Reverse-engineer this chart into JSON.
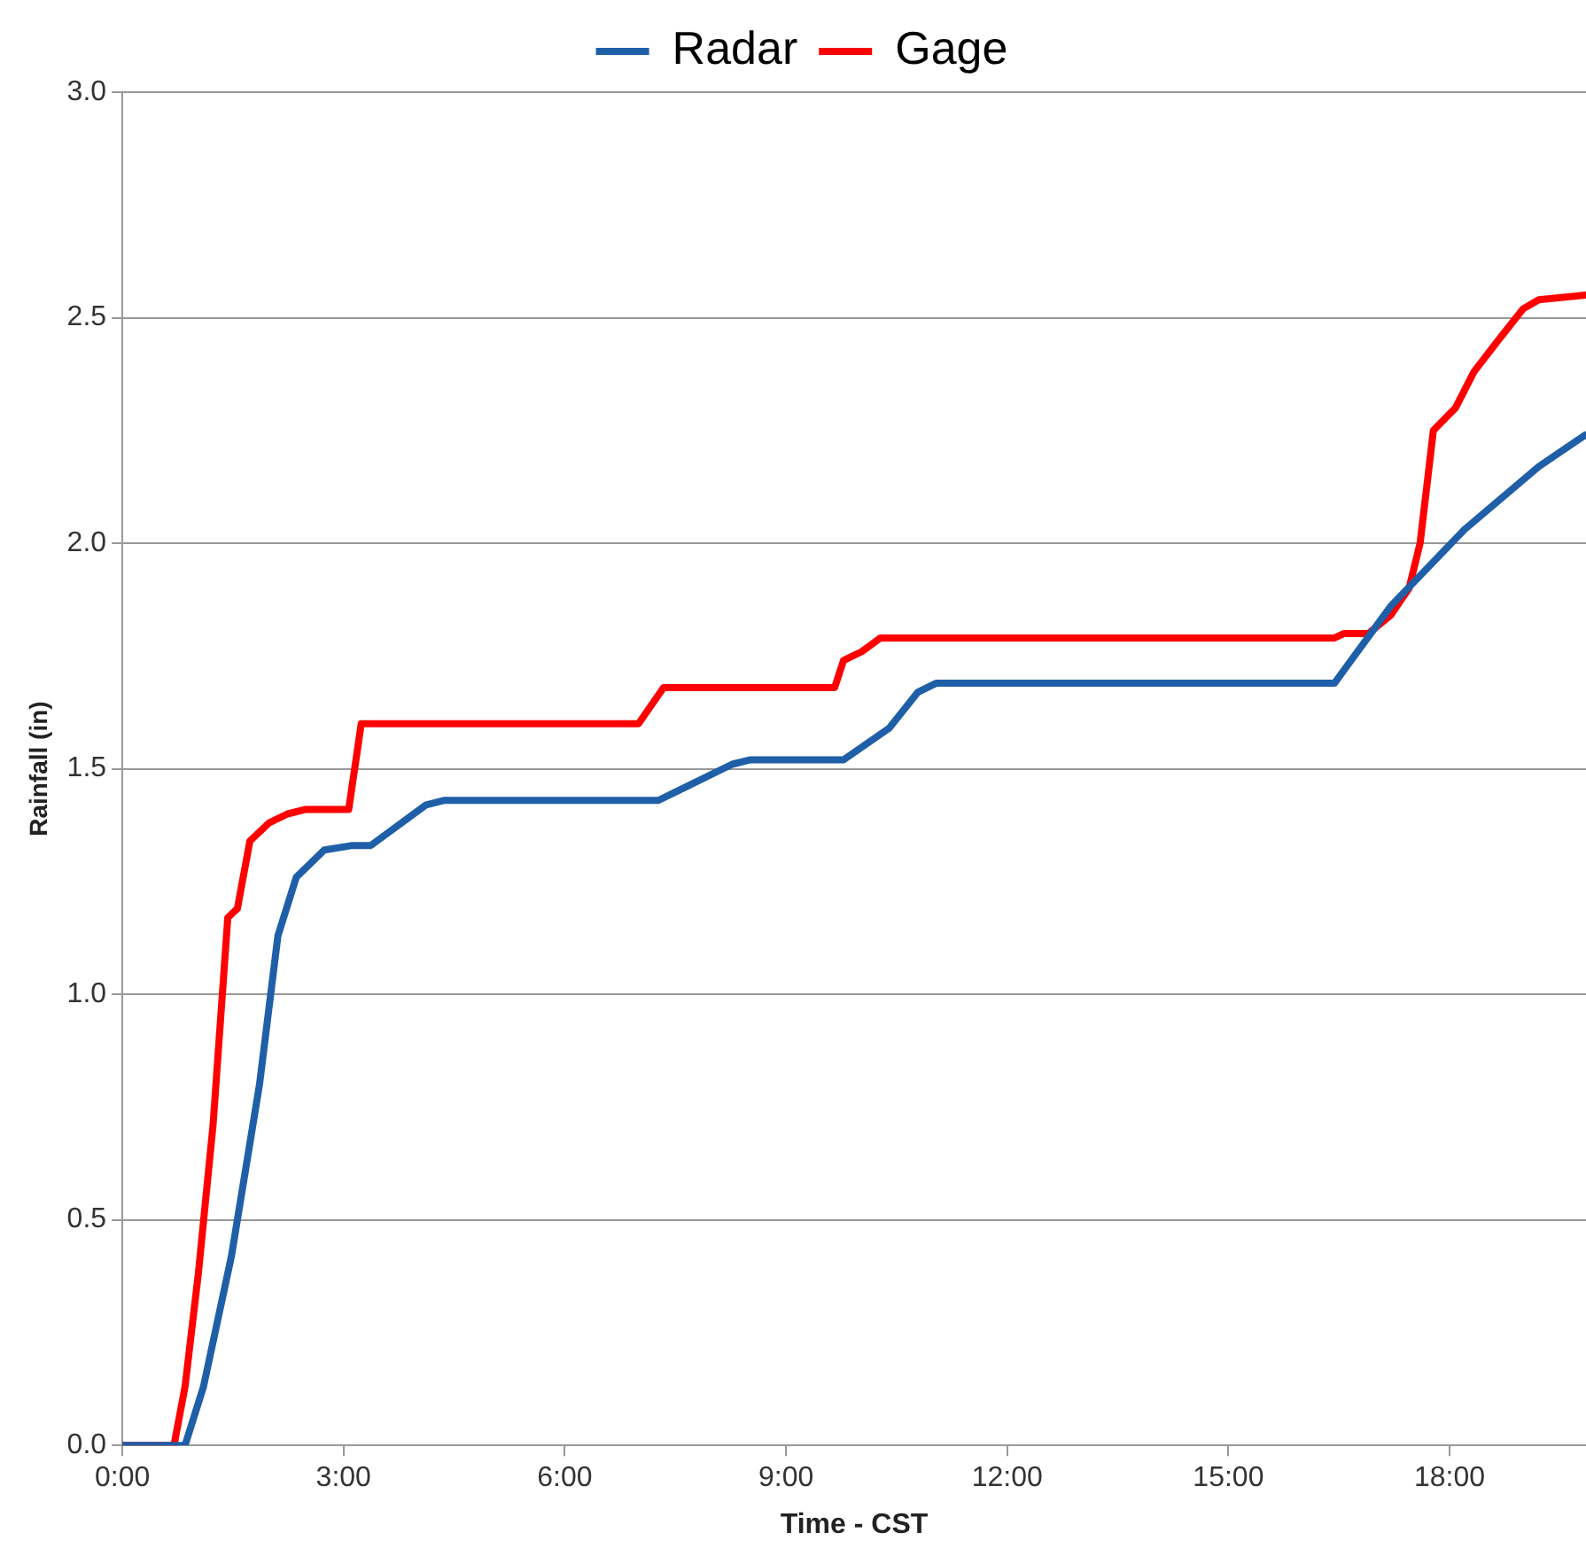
{
  "chart_data": {
    "type": "line",
    "xlabel": "Time - CST",
    "ylabel": "Rainfall (in)",
    "xlim": [
      0,
      19.85
    ],
    "ylim": [
      0,
      3
    ],
    "xticks": [
      {
        "value": 0,
        "label": "0:00"
      },
      {
        "value": 3,
        "label": "3:00"
      },
      {
        "value": 6,
        "label": "6:00"
      },
      {
        "value": 9,
        "label": "9:00"
      },
      {
        "value": 12,
        "label": "12:00"
      },
      {
        "value": 15,
        "label": "15:00"
      },
      {
        "value": 18,
        "label": "18:00"
      }
    ],
    "yticks": [
      {
        "value": 0,
        "label": "0.0"
      },
      {
        "value": 0.5,
        "label": "0.5"
      },
      {
        "value": 1,
        "label": "1.0"
      },
      {
        "value": 1.5,
        "label": "1.5"
      },
      {
        "value": 2,
        "label": "2.0"
      },
      {
        "value": 2.5,
        "label": "2.5"
      },
      {
        "value": 3,
        "label": "3.0"
      }
    ],
    "grid": "y",
    "legend": "top",
    "marker": "none",
    "line_style": "solid",
    "series": [
      {
        "name": "Radar",
        "color": "#1f5fa8",
        "x": [
          0,
          0.85,
          1.1,
          1.48,
          1.86,
          2.11,
          2.36,
          2.74,
          3.12,
          3.37,
          4.12,
          4.37,
          7.27,
          8.27,
          8.52,
          9.78,
          10.4,
          10.79,
          11.04,
          16.44,
          17.2,
          18.2,
          19.21,
          19.84
        ],
        "values": [
          0,
          0,
          0.13,
          0.42,
          0.8,
          1.13,
          1.26,
          1.32,
          1.33,
          1.33,
          1.42,
          1.43,
          1.43,
          1.51,
          1.52,
          1.52,
          1.59,
          1.67,
          1.69,
          1.69,
          1.86,
          2.03,
          2.17,
          2.24
        ]
      },
      {
        "name": "Gage",
        "color": "#ff0000",
        "x": [
          0,
          0.7,
          0.85,
          1.03,
          1.23,
          1.43,
          1.56,
          1.73,
          1.99,
          2.24,
          2.49,
          3.07,
          3.24,
          7.0,
          7.34,
          9.66,
          9.78,
          10.03,
          10.28,
          16.44,
          16.57,
          16.9,
          17.2,
          17.45,
          17.6,
          17.78,
          18.08,
          18.33,
          18.66,
          19.0,
          19.21,
          19.84
        ],
        "values": [
          0,
          0,
          0.13,
          0.38,
          0.71,
          1.17,
          1.19,
          1.34,
          1.38,
          1.4,
          1.41,
          1.41,
          1.6,
          1.6,
          1.68,
          1.68,
          1.74,
          1.76,
          1.79,
          1.79,
          1.8,
          1.8,
          1.84,
          1.9,
          2.0,
          2.25,
          2.3,
          2.38,
          2.45,
          2.52,
          2.54,
          2.55
        ]
      }
    ]
  }
}
